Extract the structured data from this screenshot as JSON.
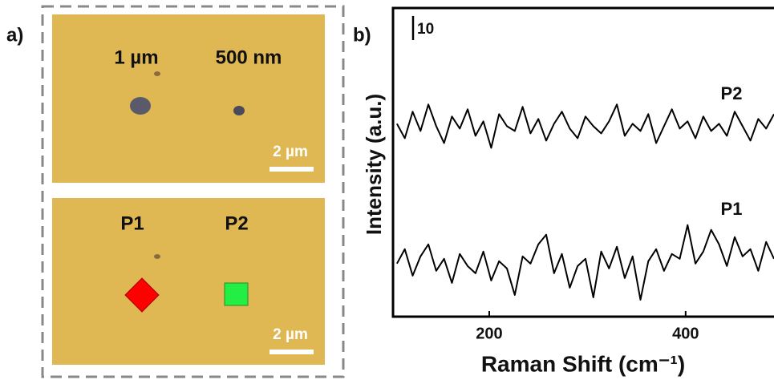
{
  "panel_a": {
    "label": "a)",
    "top_image": {
      "left_label": "1 µm",
      "right_label": "500 nm",
      "scale_bar_label": "2 µm"
    },
    "bottom_image": {
      "left_label": "P1",
      "right_label": "P2",
      "scale_bar_label": "2 µm"
    }
  },
  "chart_data": {
    "type": "line",
    "panel_label": "b)",
    "xlabel": "Raman Shift (cm⁻¹)",
    "ylabel": "Intensity (a.u.)",
    "xlim": [
      102,
      490
    ],
    "ylim": [
      0,
      128
    ],
    "xticks": [
      200,
      400
    ],
    "scale_bar": 10,
    "x": [
      106,
      114,
      122,
      130,
      138,
      146,
      154,
      162,
      170,
      178,
      186,
      194,
      202,
      210,
      218,
      226,
      234,
      242,
      250,
      258,
      266,
      274,
      282,
      290,
      298,
      306,
      314,
      322,
      330,
      338,
      346,
      354,
      362,
      370,
      378,
      386,
      394,
      402,
      410,
      418,
      426,
      434,
      442,
      450,
      458,
      466,
      474,
      482,
      490
    ],
    "series": [
      {
        "name": "P2",
        "color": "#000000",
        "values": [
          80,
          74,
          85,
          77,
          88,
          79,
          72,
          83,
          78,
          86,
          75,
          81,
          70,
          84,
          79,
          77,
          87,
          76,
          82,
          73,
          80,
          85,
          78,
          74,
          83,
          79,
          76,
          81,
          88,
          75,
          80,
          77,
          84,
          72,
          79,
          86,
          78,
          81,
          74,
          83,
          77,
          80,
          75,
          85,
          79,
          73,
          82,
          78,
          84
        ]
      },
      {
        "name": "P1",
        "color": "#000000",
        "values": [
          22,
          28,
          17,
          25,
          30,
          19,
          24,
          14,
          26,
          21,
          18,
          27,
          15,
          23,
          20,
          9,
          25,
          22,
          30,
          34,
          18,
          26,
          12,
          21,
          24,
          8,
          27,
          20,
          29,
          16,
          25,
          7,
          23,
          28,
          19,
          26,
          24,
          38,
          22,
          27,
          36,
          30,
          21,
          33,
          25,
          28,
          19,
          31,
          24
        ]
      }
    ]
  }
}
